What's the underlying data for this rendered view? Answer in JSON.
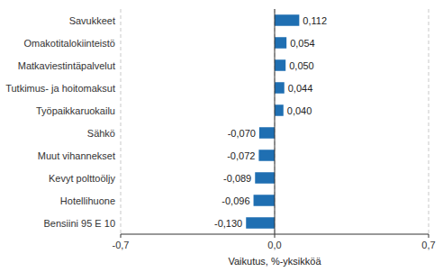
{
  "chart_data": {
    "type": "bar",
    "orientation": "horizontal",
    "categories": [
      "Bensiini 95 E 10",
      "Hotellihuone",
      "Kevyt polttoöljy",
      "Muut vihannekset",
      "Sähkö",
      "Työpaikkaruokailu",
      "Tutkimus- ja hoitomaksut",
      "Matkaviestintäpalvelut",
      "Omakotitalokiinteistö",
      "Savukkeet"
    ],
    "values": [
      -0.13,
      -0.096,
      -0.089,
      -0.072,
      -0.07,
      0.04,
      0.044,
      0.05,
      0.054,
      0.112
    ],
    "value_labels": [
      "-0,130",
      "-0,096",
      "-0,089",
      "-0,072",
      "-0,070",
      "0,040",
      "0,044",
      "0,050",
      "0,054",
      "0,112"
    ],
    "data_labels": true,
    "color": "#1f6fb2",
    "xlabel": "Vaikutus, %-yksikköä",
    "xlim": [
      -0.7,
      0.7
    ],
    "xticks": [
      {
        "value": -0.7,
        "label": "-0,7"
      },
      {
        "value": 0.0,
        "label": "0,0"
      },
      {
        "value": 0.7,
        "label": "0,7"
      }
    ],
    "grid": true
  }
}
